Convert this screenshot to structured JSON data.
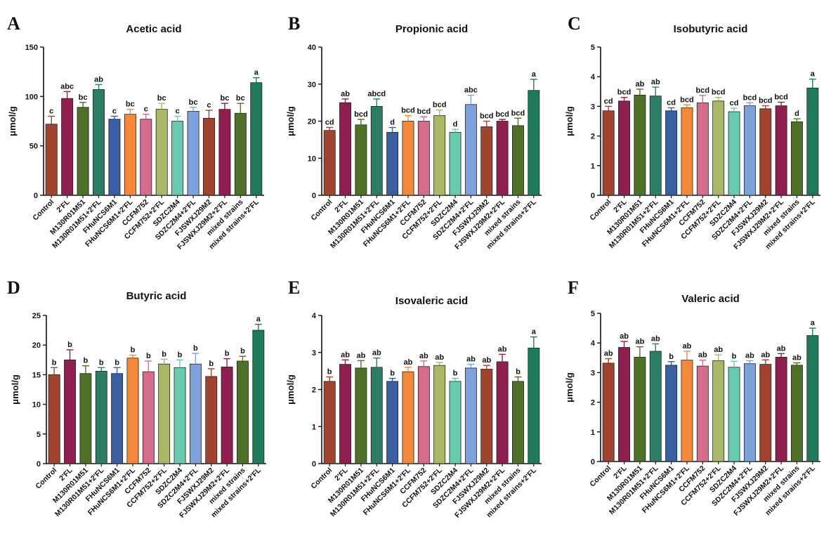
{
  "figure": {
    "panel_letters": [
      "A",
      "B",
      "C",
      "D",
      "E",
      "F"
    ]
  },
  "chart_data": [
    {
      "panel": "A",
      "type": "bar",
      "title": "Acetic acid",
      "ylabel": "μmol/g",
      "ylim": [
        0,
        150
      ],
      "yticks": [
        0,
        50,
        100,
        150
      ],
      "categories": [
        "Control",
        "2'FL",
        "M130R01M51",
        "M130R01M51+2'FL",
        "FHuNCS6M1",
        "FHuNCS6M1+2'FL",
        "CCFM752",
        "CCFM752+2'FL",
        "SDZC2M4",
        "SDZC2M4+2'FL",
        "FJSWXJ29M2",
        "FJSWXJ29M2+2'FL",
        "mixed strains",
        "mixed strains+2'FL"
      ],
      "values": [
        72,
        98,
        89,
        107,
        77,
        82,
        77,
        87,
        75,
        85,
        78,
        87,
        83,
        114
      ],
      "errors": [
        8,
        7,
        5,
        5,
        3,
        5,
        5,
        6,
        5,
        4,
        8,
        6,
        10,
        5
      ],
      "significance": [
        "c",
        "abc",
        "bc",
        "ab",
        "c",
        "bc",
        "c",
        "bc",
        "c",
        "bc",
        "c",
        "bc",
        "bc",
        "a"
      ]
    },
    {
      "panel": "B",
      "type": "bar",
      "title": "Propionic acid",
      "ylabel": "μmol/g",
      "ylim": [
        0,
        40
      ],
      "yticks": [
        0,
        10,
        20,
        30,
        40
      ],
      "categories": [
        "Control",
        "2'FL",
        "M130R01M51",
        "M130R01M51+2'FL",
        "FHuNCS6M1",
        "FHuNCS6M1+2'FL",
        "CCFM752",
        "CCFM752+2'FL",
        "SDZC2M4",
        "SDZC2M4+2'FL",
        "FJSWXJ29M2",
        "FJSWXJ29M2+2'FL",
        "mixed strains",
        "mixed strains+2'FL"
      ],
      "values": [
        17.5,
        25,
        19,
        24,
        17,
        20,
        20,
        21.5,
        17,
        24.5,
        18.5,
        20,
        18.8,
        28.3
      ],
      "errors": [
        0.8,
        1,
        1.5,
        2,
        1.3,
        1.5,
        1.2,
        1.5,
        0.8,
        2.5,
        1.5,
        0.5,
        2,
        3
      ],
      "significance": [
        "cd",
        "ab",
        "bcd",
        "abcd",
        "d",
        "bcd",
        "bcd",
        "bcd",
        "d",
        "abc",
        "bcd",
        "bcd",
        "bcd",
        "a"
      ]
    },
    {
      "panel": "C",
      "type": "bar",
      "title": "Isobutyric acid",
      "ylabel": "μmol/g",
      "ylim": [
        0,
        5
      ],
      "yticks": [
        0,
        1,
        2,
        3,
        4,
        5
      ],
      "categories": [
        "Control",
        "2'FL",
        "M130R01M51",
        "M130R01M51+2'FL",
        "FHuNCS6M1",
        "FHuNCS6M1+2'FL",
        "CCFM752",
        "CCFM752+2'FL",
        "SDZC2M4",
        "SDZC2M4+2'FL",
        "FJSWXJ29M2",
        "FJSWXJ29M2+2'FL",
        "mixed strains",
        "mixed strains+2'FL"
      ],
      "values": [
        2.85,
        3.18,
        3.38,
        3.35,
        2.85,
        2.95,
        3.12,
        3.18,
        2.82,
        3.02,
        2.92,
        3.02,
        2.48,
        3.62
      ],
      "errors": [
        0.15,
        0.12,
        0.2,
        0.3,
        0.1,
        0.1,
        0.25,
        0.12,
        0.12,
        0.1,
        0.1,
        0.12,
        0.1,
        0.3
      ],
      "significance": [
        "cd",
        "bcd",
        "ab",
        "ab",
        "cd",
        "bcd",
        "bcd",
        "bcd",
        "cd",
        "bcd",
        "bcd",
        "bcd",
        "d",
        "a"
      ]
    },
    {
      "panel": "D",
      "type": "bar",
      "title": "Butyric acid",
      "ylabel": "μmol/g",
      "ylim": [
        0,
        25
      ],
      "yticks": [
        0,
        5,
        10,
        15,
        20,
        25
      ],
      "categories": [
        "Control",
        "2'FL",
        "M130R01M51",
        "M130R01M51+2'FL",
        "FHuNCS6M1",
        "FHuNCS6M1+2'FL",
        "CCFM752",
        "CCFM752+2'FL",
        "SDZC2M4",
        "SDZC2M4+2'FL",
        "FJSWXJ29M2",
        "FJSWXJ29M2+2'FL",
        "mixed strains",
        "mixed strains+2'FL"
      ],
      "values": [
        15,
        17.5,
        15.2,
        15.6,
        15.2,
        17.8,
        15.5,
        16.8,
        16.2,
        16.8,
        14.7,
        16.3,
        17.3,
        22.5
      ],
      "errors": [
        1.2,
        1.7,
        1.3,
        0.6,
        1,
        0.5,
        1.8,
        0.8,
        1.3,
        1.8,
        1.3,
        1.4,
        0.8,
        1
      ],
      "significance": [
        "b",
        "b",
        "b",
        "b",
        "b",
        "b",
        "b",
        "b",
        "b",
        "b",
        "b",
        "b",
        "b",
        "a"
      ]
    },
    {
      "panel": "E",
      "type": "bar",
      "title": "Isovaleric acid",
      "ylabel": "μmol/g",
      "ylim": [
        0,
        4
      ],
      "yticks": [
        0,
        1,
        2,
        3,
        4
      ],
      "categories": [
        "Control",
        "2'FL",
        "M130R01M51",
        "M130R01M51+2'FL",
        "FHuNCS6M1",
        "FHuNCS6M1+2'FL",
        "CCFM752",
        "CCFM752+2'FL",
        "SDZC2M4",
        "SDZC2M4+2'FL",
        "FJSWXJ29M2",
        "FJSWXJ29M2+2'FL",
        "mixed strains",
        "mixed strains+2'FL"
      ],
      "values": [
        2.22,
        2.68,
        2.58,
        2.6,
        2.22,
        2.48,
        2.62,
        2.65,
        2.22,
        2.58,
        2.55,
        2.75,
        2.22,
        3.12
      ],
      "errors": [
        0.12,
        0.12,
        0.2,
        0.25,
        0.08,
        0.12,
        0.15,
        0.08,
        0.08,
        0.1,
        0.1,
        0.2,
        0.12,
        0.3
      ],
      "significance": [
        "b",
        "ab",
        "ab",
        "ab",
        "b",
        "ab",
        "ab",
        "ab",
        "b",
        "ab",
        "ab",
        "ab",
        "b",
        "a"
      ]
    },
    {
      "panel": "F",
      "type": "bar",
      "title": "Valeric acid",
      "ylabel": "μmol/g",
      "ylim": [
        0,
        5
      ],
      "yticks": [
        0,
        1,
        2,
        3,
        4,
        5
      ],
      "categories": [
        "Control",
        "2'FL",
        "M130R01M51",
        "M130R01M51+2'FL",
        "FHuNCS6M1",
        "FHuNCS6M1+2'FL",
        "CCFM752",
        "CCFM752+2'FL",
        "SDZC2M4",
        "SDZC2M4+2'FL",
        "FJSWXJ29M2",
        "FJSWXJ29M2+2'FL",
        "mixed strains",
        "mixed strains+2'FL"
      ],
      "values": [
        3.32,
        3.85,
        3.52,
        3.72,
        3.25,
        3.42,
        3.22,
        3.4,
        3.18,
        3.3,
        3.28,
        3.52,
        3.25,
        4.25
      ],
      "errors": [
        0.15,
        0.2,
        0.35,
        0.25,
        0.12,
        0.3,
        0.2,
        0.2,
        0.2,
        0.1,
        0.15,
        0.12,
        0.08,
        0.25
      ],
      "significance": [
        "ab",
        "ab",
        "ab",
        "ab",
        "b",
        "ab",
        "ab",
        "ab",
        "b",
        "ab",
        "ab",
        "ab",
        "ab",
        "a"
      ]
    }
  ],
  "colors": {
    "bar_fills": [
      "#a0442f",
      "#8f1f4f",
      "#4f7127",
      "#2b7d66",
      "#3a5fa0",
      "#f5883a",
      "#d46c8b",
      "#a9b866",
      "#68cbb0",
      "#7ea1db",
      "#a0442f",
      "#8f1f4f",
      "#4f7127",
      "#1f7a5c"
    ],
    "axis": "#111111"
  }
}
